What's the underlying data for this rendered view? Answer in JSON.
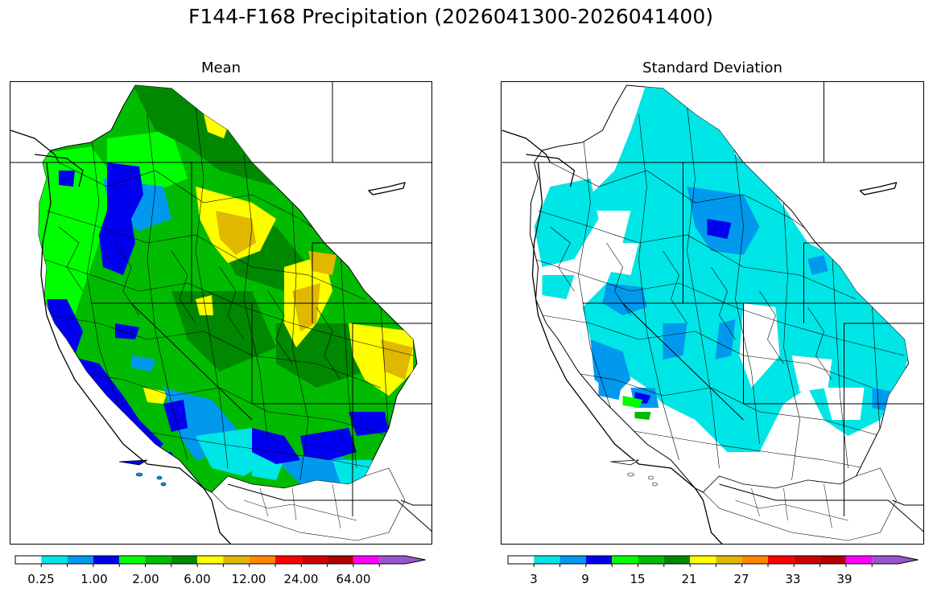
{
  "title": "F144-F168 Precipitation (2026041300-2026041400)",
  "panels": {
    "mean": {
      "title": "Mean",
      "colorbar_colors": [
        "#ffffff",
        "#00e5e5",
        "#0099ee",
        "#0000ee",
        "#00ff00",
        "#00bb00",
        "#008800",
        "#ffff00",
        "#e0b800",
        "#ff8800",
        "#ff0000",
        "#cc0000",
        "#b00000",
        "#ff00ff",
        "#9955cc"
      ],
      "colorbar_labels": [
        "0.25",
        "1.00",
        "2.00",
        "6.00",
        "12.00",
        "24.00",
        "64.00"
      ]
    },
    "stdev": {
      "title": "Standard Deviation",
      "colorbar_colors": [
        "#ffffff",
        "#00e5e5",
        "#0099ee",
        "#0000ee",
        "#00ff00",
        "#00bb00",
        "#008800",
        "#ffff00",
        "#e0b800",
        "#ff8800",
        "#ff0000",
        "#cc0000",
        "#b00000",
        "#ff00ff",
        "#9955cc"
      ],
      "colorbar_labels": [
        "3",
        "9",
        "15",
        "21",
        "27",
        "33",
        "39"
      ]
    }
  }
}
